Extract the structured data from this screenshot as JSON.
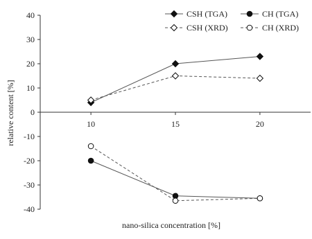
{
  "chart_data": {
    "type": "line",
    "title": "",
    "xlabel": "nano-silica concentration [%]",
    "ylabel": "relative content [%]",
    "x": [
      10,
      15,
      20
    ],
    "xlim": [
      7,
      23
    ],
    "ylim": [
      -40,
      40
    ],
    "yticks": [
      40,
      30,
      20,
      10,
      0,
      -10,
      -20,
      -30,
      -40
    ],
    "grid": false,
    "legend_position": "top-right",
    "series": [
      {
        "name": "CSH (TGA)",
        "values": [
          4,
          20,
          23
        ],
        "marker": "diamond",
        "fill": "filled",
        "line": "solid"
      },
      {
        "name": "CSH (XRD)",
        "values": [
          5,
          15,
          14
        ],
        "marker": "diamond",
        "fill": "open",
        "line": "dashed"
      },
      {
        "name": "CH (TGA)",
        "values": [
          -20,
          -34.5,
          -35.5
        ],
        "marker": "circle",
        "fill": "filled",
        "line": "solid"
      },
      {
        "name": "CH (XRD)",
        "values": [
          -14,
          -36.5,
          -35.5
        ],
        "marker": "circle",
        "fill": "open",
        "line": "dashed"
      }
    ],
    "colors": {
      "line": "#555555",
      "marker": "#111111",
      "axis": "#333333"
    }
  }
}
